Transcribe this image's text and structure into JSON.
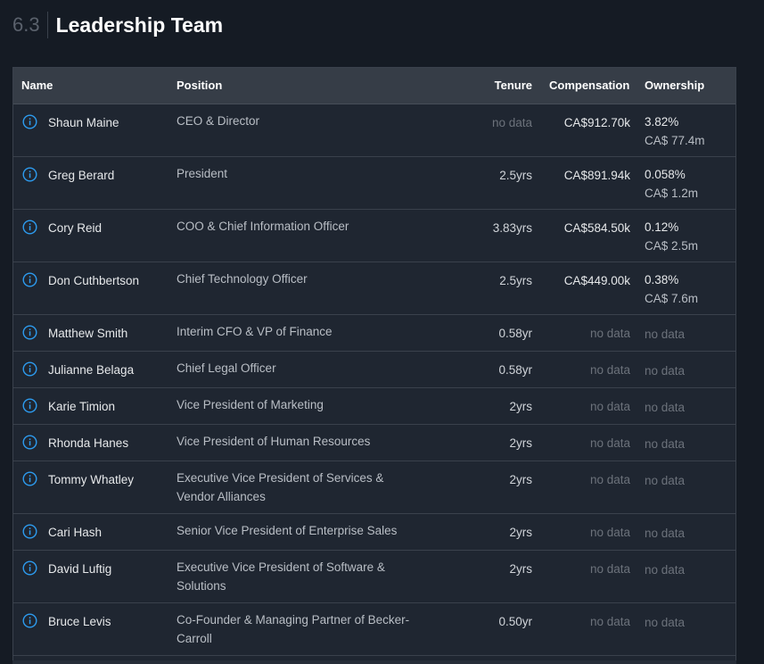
{
  "section": {
    "number": "6.3",
    "title": "Leadership Team"
  },
  "table": {
    "headers": {
      "name": "Name",
      "position": "Position",
      "tenure": "Tenure",
      "compensation": "Compensation",
      "ownership": "Ownership"
    },
    "rows": [
      {
        "name": "Shaun Maine",
        "position": "CEO & Director",
        "tenure": "no data",
        "compensation": "CA$912.70k",
        "ownership": "3.82%",
        "ownership_value": "CA$ 77.4m"
      },
      {
        "name": "Greg Berard",
        "position": "President",
        "tenure": "2.5yrs",
        "compensation": "CA$891.94k",
        "ownership": "0.058%",
        "ownership_value": "CA$ 1.2m"
      },
      {
        "name": "Cory Reid",
        "position": "COO & Chief Information Officer",
        "tenure": "3.83yrs",
        "compensation": "CA$584.50k",
        "ownership": "0.12%",
        "ownership_value": "CA$ 2.5m"
      },
      {
        "name": "Don Cuthbertson",
        "position": "Chief Technology Officer",
        "tenure": "2.5yrs",
        "compensation": "CA$449.00k",
        "ownership": "0.38%",
        "ownership_value": "CA$ 7.6m"
      },
      {
        "name": "Matthew Smith",
        "position": "Interim CFO & VP of Finance",
        "tenure": "0.58yr",
        "compensation": "no data",
        "ownership": "no data",
        "ownership_value": ""
      },
      {
        "name": "Julianne Belaga",
        "position": "Chief Legal Officer",
        "tenure": "0.58yr",
        "compensation": "no data",
        "ownership": "no data",
        "ownership_value": ""
      },
      {
        "name": "Karie Timion",
        "position": "Vice President of Marketing",
        "tenure": "2yrs",
        "compensation": "no data",
        "ownership": "no data",
        "ownership_value": ""
      },
      {
        "name": "Rhonda Hanes",
        "position": "Vice President of Human Resources",
        "tenure": "2yrs",
        "compensation": "no data",
        "ownership": "no data",
        "ownership_value": ""
      },
      {
        "name": "Tommy Whatley",
        "position": "Executive Vice President of Services & Vendor Alliances",
        "tenure": "2yrs",
        "compensation": "no data",
        "ownership": "no data",
        "ownership_value": ""
      },
      {
        "name": "Cari Hash",
        "position": "Senior Vice President of Enterprise Sales",
        "tenure": "2yrs",
        "compensation": "no data",
        "ownership": "no data",
        "ownership_value": ""
      },
      {
        "name": "David Luftig",
        "position": "Executive Vice President of Software & Solutions",
        "tenure": "2yrs",
        "compensation": "no data",
        "ownership": "no data",
        "ownership_value": ""
      },
      {
        "name": "Bruce Levis",
        "position": "Co-Founder & Managing Partner of Becker-Carroll",
        "tenure": "0.50yr",
        "compensation": "no data",
        "ownership": "no data",
        "ownership_value": ""
      }
    ]
  },
  "colors": {
    "background": "#151b24",
    "table_bg": "#1f2631",
    "header_bg": "#363d47",
    "accent_icon": "#2d9cf0"
  },
  "icons": {
    "row_icon": "info-icon"
  }
}
